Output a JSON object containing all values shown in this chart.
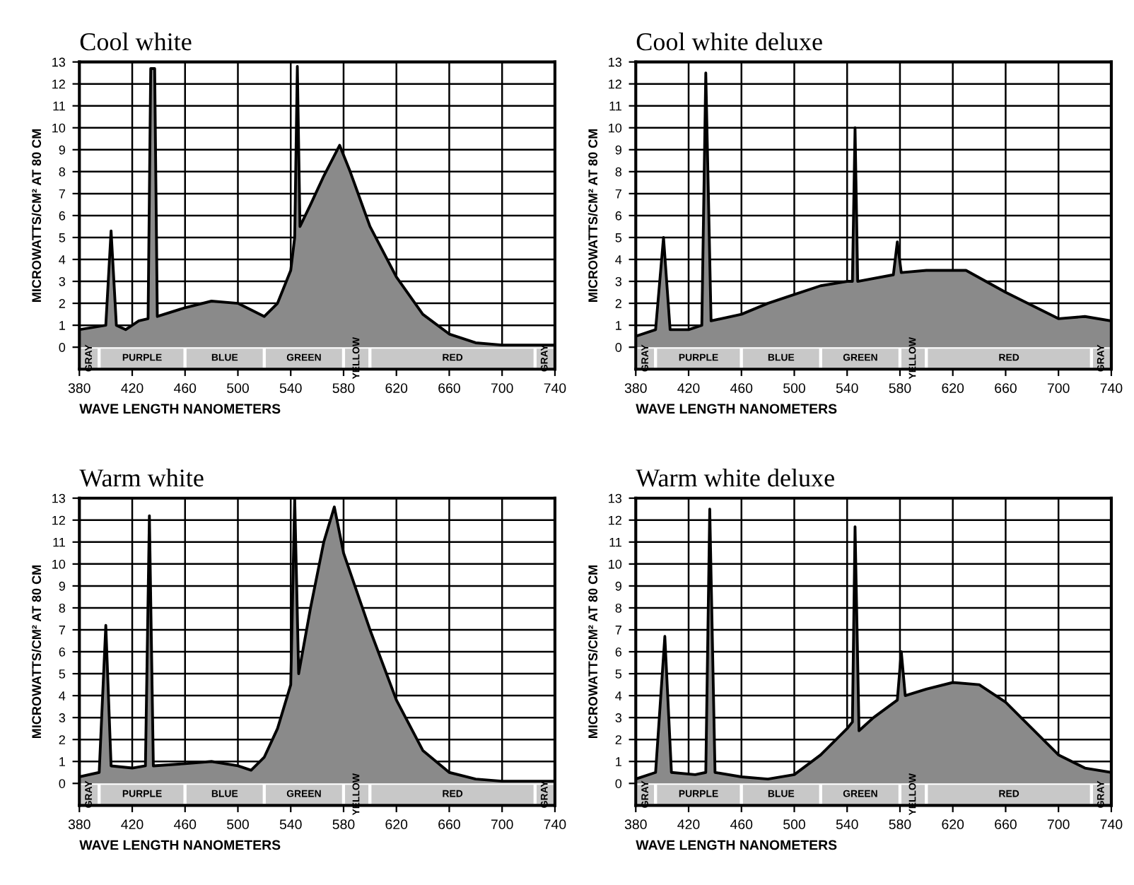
{
  "chart_data": [
    {
      "type": "area",
      "title": "Cool white",
      "xlabel": "WAVE LENGTH NANOMETERS",
      "ylabel": "MICROWATTS/CM² AT 80 CM",
      "xlim": [
        380,
        740
      ],
      "ylim": [
        -1,
        13
      ],
      "xticks": [
        380,
        420,
        460,
        500,
        540,
        580,
        620,
        660,
        700,
        740
      ],
      "yticks": [
        0,
        1,
        2,
        3,
        4,
        5,
        6,
        7,
        8,
        9,
        10,
        11,
        12,
        13
      ],
      "grid": true,
      "legend": false,
      "series": [
        {
          "color": "#8a8a8a",
          "x": [
            380,
            400,
            404,
            408,
            415,
            425,
            432,
            434,
            437,
            439,
            460,
            480,
            500,
            520,
            530,
            540,
            543,
            545,
            547,
            555,
            565,
            577,
            585,
            600,
            620,
            640,
            660,
            680,
            700,
            740
          ],
          "values": [
            0.8,
            1.0,
            5.3,
            1.0,
            0.8,
            1.2,
            1.3,
            12.7,
            12.7,
            1.4,
            1.8,
            2.1,
            2.0,
            1.4,
            2.0,
            3.5,
            5.0,
            12.8,
            5.5,
            6.5,
            7.8,
            9.2,
            8.0,
            5.5,
            3.2,
            1.5,
            0.6,
            0.2,
            0.1,
            0.1
          ]
        }
      ],
      "bands": [
        {
          "axis": "x",
          "from": 380,
          "to": 395,
          "label": "GRAY"
        },
        {
          "axis": "x",
          "from": 395,
          "to": 460,
          "label": "PURPLE"
        },
        {
          "axis": "x",
          "from": 460,
          "to": 520,
          "label": "BLUE"
        },
        {
          "axis": "x",
          "from": 520,
          "to": 580,
          "label": "GREEN"
        },
        {
          "axis": "x",
          "from": 580,
          "to": 600,
          "label": "YELLOW"
        },
        {
          "axis": "x",
          "from": 600,
          "to": 725,
          "label": "RED"
        },
        {
          "axis": "x",
          "from": 725,
          "to": 740,
          "label": "GRAY"
        }
      ]
    },
    {
      "type": "area",
      "title": "Cool white deluxe",
      "xlabel": "WAVE LENGTH NANOMETERS",
      "ylabel": "MICROWATTS/CM² AT 80 CM",
      "xlim": [
        380,
        740
      ],
      "ylim": [
        -1,
        13
      ],
      "xticks": [
        380,
        420,
        460,
        500,
        540,
        580,
        620,
        660,
        700,
        740
      ],
      "yticks": [
        0,
        1,
        2,
        3,
        4,
        5,
        6,
        7,
        8,
        9,
        10,
        11,
        12,
        13
      ],
      "grid": true,
      "legend": false,
      "series": [
        {
          "color": "#8a8a8a",
          "x": [
            380,
            395,
            401,
            406,
            420,
            430,
            433,
            437,
            460,
            480,
            500,
            520,
            540,
            544,
            546,
            548,
            575,
            578,
            581,
            600,
            630,
            660,
            700,
            720,
            740
          ],
          "values": [
            0.5,
            0.8,
            5.0,
            0.8,
            0.8,
            1.0,
            12.5,
            1.2,
            1.5,
            2.0,
            2.4,
            2.8,
            3.0,
            3.0,
            10.0,
            3.0,
            3.3,
            4.8,
            3.4,
            3.5,
            3.5,
            2.5,
            1.3,
            1.4,
            1.2
          ]
        }
      ],
      "bands": [
        {
          "axis": "x",
          "from": 380,
          "to": 395,
          "label": "GRAY"
        },
        {
          "axis": "x",
          "from": 395,
          "to": 460,
          "label": "PURPLE"
        },
        {
          "axis": "x",
          "from": 460,
          "to": 520,
          "label": "BLUE"
        },
        {
          "axis": "x",
          "from": 520,
          "to": 580,
          "label": "GREEN"
        },
        {
          "axis": "x",
          "from": 580,
          "to": 600,
          "label": "YELLOW"
        },
        {
          "axis": "x",
          "from": 600,
          "to": 725,
          "label": "RED"
        },
        {
          "axis": "x",
          "from": 725,
          "to": 740,
          "label": "GRAY"
        }
      ]
    },
    {
      "type": "area",
      "title": "Warm white",
      "xlabel": "WAVE LENGTH NANOMETERS",
      "ylabel": "MICROWATTS/CM² AT 80 CM",
      "xlim": [
        380,
        740
      ],
      "ylim": [
        -1,
        13
      ],
      "xticks": [
        380,
        420,
        460,
        500,
        540,
        580,
        620,
        660,
        700,
        740
      ],
      "yticks": [
        0,
        1,
        2,
        3,
        4,
        5,
        6,
        7,
        8,
        9,
        10,
        11,
        12,
        13
      ],
      "grid": true,
      "legend": false,
      "series": [
        {
          "color": "#8a8a8a",
          "x": [
            380,
            395,
            400,
            404,
            420,
            430,
            433,
            436,
            460,
            480,
            500,
            510,
            520,
            530,
            540,
            543,
            546,
            555,
            565,
            573,
            580,
            600,
            620,
            640,
            660,
            680,
            700,
            740
          ],
          "values": [
            0.3,
            0.5,
            7.2,
            0.8,
            0.7,
            0.8,
            12.2,
            0.8,
            0.9,
            1.0,
            0.8,
            0.6,
            1.2,
            2.5,
            4.5,
            13.0,
            5.0,
            8.0,
            11.0,
            12.6,
            10.5,
            7.0,
            3.8,
            1.5,
            0.5,
            0.2,
            0.1,
            0.1
          ]
        }
      ],
      "bands": [
        {
          "axis": "x",
          "from": 380,
          "to": 395,
          "label": "GRAY"
        },
        {
          "axis": "x",
          "from": 395,
          "to": 460,
          "label": "PURPLE"
        },
        {
          "axis": "x",
          "from": 460,
          "to": 520,
          "label": "BLUE"
        },
        {
          "axis": "x",
          "from": 520,
          "to": 580,
          "label": "GREEN"
        },
        {
          "axis": "x",
          "from": 580,
          "to": 600,
          "label": "YELLOW"
        },
        {
          "axis": "x",
          "from": 600,
          "to": 725,
          "label": "RED"
        },
        {
          "axis": "x",
          "from": 725,
          "to": 740,
          "label": "GRAY"
        }
      ]
    },
    {
      "type": "area",
      "title": "Warm white deluxe",
      "xlabel": "WAVE LENGTH NANOMETERS",
      "ylabel": "MICROWATTS/CM² AT 80 CM",
      "xlim": [
        380,
        740
      ],
      "ylim": [
        -1,
        13
      ],
      "xticks": [
        380,
        420,
        460,
        500,
        540,
        580,
        620,
        660,
        700,
        740
      ],
      "yticks": [
        0,
        1,
        2,
        3,
        4,
        5,
        6,
        7,
        8,
        9,
        10,
        11,
        12,
        13
      ],
      "grid": true,
      "legend": false,
      "series": [
        {
          "color": "#8a8a8a",
          "x": [
            380,
            395,
            402,
            407,
            425,
            433,
            436,
            440,
            460,
            480,
            500,
            520,
            540,
            544,
            546,
            549,
            560,
            578,
            581,
            584,
            600,
            620,
            640,
            660,
            680,
            700,
            720,
            740
          ],
          "values": [
            0.2,
            0.5,
            6.7,
            0.5,
            0.4,
            0.5,
            12.5,
            0.5,
            0.3,
            0.2,
            0.4,
            1.3,
            2.5,
            2.8,
            11.7,
            2.4,
            3.0,
            3.8,
            6.0,
            4.0,
            4.3,
            4.6,
            4.5,
            3.7,
            2.5,
            1.3,
            0.7,
            0.5
          ]
        }
      ],
      "bands": [
        {
          "axis": "x",
          "from": 380,
          "to": 395,
          "label": "GRAY"
        },
        {
          "axis": "x",
          "from": 395,
          "to": 460,
          "label": "PURPLE"
        },
        {
          "axis": "x",
          "from": 460,
          "to": 520,
          "label": "BLUE"
        },
        {
          "axis": "x",
          "from": 520,
          "to": 580,
          "label": "GREEN"
        },
        {
          "axis": "x",
          "from": 580,
          "to": 600,
          "label": "YELLOW"
        },
        {
          "axis": "x",
          "from": 600,
          "to": 725,
          "label": "RED"
        },
        {
          "axis": "x",
          "from": 725,
          "to": 740,
          "label": "GRAY"
        }
      ]
    }
  ]
}
